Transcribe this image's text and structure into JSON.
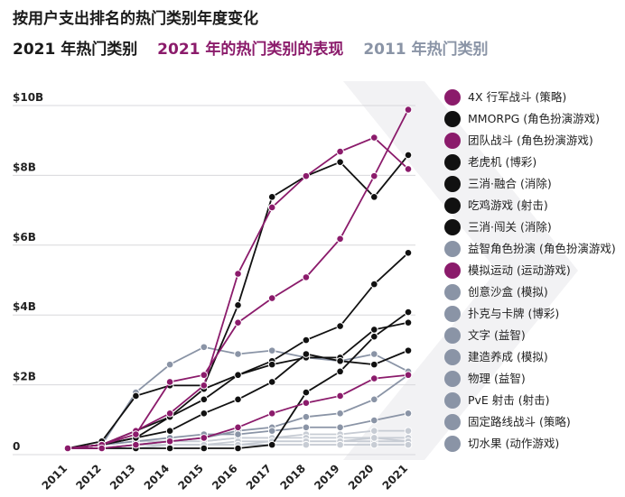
{
  "title": "按用户支出排名的热门类别年度变化",
  "subtitles": [
    {
      "text": "2021 年热门类别",
      "color": "#1a1a1a"
    },
    {
      "text": "2021 年的热门类别的表现",
      "color": "#8b1b6b"
    },
    {
      "text": "2011 年热门类别",
      "color": "#8a94a6"
    }
  ],
  "colors": {
    "purple": "#8b1b6b",
    "black": "#111111",
    "gray": "#8a94a6",
    "lightgray": "#c7ccd4"
  },
  "chart_data": {
    "type": "line",
    "title": "按用户支出排名的热门类别年度变化",
    "x": [
      "2011",
      "2012",
      "2013",
      "2014",
      "2015",
      "2016",
      "2017",
      "2018",
      "2019",
      "2020",
      "2021"
    ],
    "ylim": [
      0,
      10
    ],
    "yticks": [
      {
        "value": 0,
        "label": "0"
      },
      {
        "value": 2,
        "label": "$2B"
      },
      {
        "value": 4,
        "label": "$4B"
      },
      {
        "value": 6,
        "label": "$6B"
      },
      {
        "value": 8,
        "label": "$8B"
      },
      {
        "value": 10,
        "label": "$10B"
      }
    ],
    "grid": true,
    "legend_position": "right",
    "series": [
      {
        "name": "4X 行军战斗 (策略)",
        "color": "purple",
        "values": [
          0,
          0.1,
          0.5,
          1.0,
          1.8,
          5.0,
          6.9,
          7.8,
          8.5,
          8.9,
          8.0
        ]
      },
      {
        "name": "MMORPG (角色扮演游戏)",
        "color": "black",
        "values": [
          0,
          0.2,
          1.5,
          1.8,
          1.8,
          4.1,
          7.2,
          7.8,
          8.2,
          7.2,
          8.4
        ]
      },
      {
        "name": "团队战斗 (角色扮演游戏)",
        "color": "purple",
        "values": [
          0,
          0.1,
          0.4,
          1.9,
          2.1,
          3.6,
          4.3,
          4.9,
          6.0,
          7.8,
          9.7
        ]
      },
      {
        "name": "老虎机 (博彩)",
        "color": "black",
        "values": [
          0,
          0.1,
          0.5,
          0.9,
          1.4,
          2.1,
          2.5,
          3.1,
          3.5,
          4.7,
          5.6
        ]
      },
      {
        "name": "三消·融合 (消除)",
        "color": "black",
        "values": [
          0,
          0.1,
          0.3,
          0.9,
          1.7,
          2.1,
          2.4,
          2.6,
          2.6,
          3.4,
          3.6
        ]
      },
      {
        "name": "吃鸡游戏 (射击)",
        "color": "black",
        "values": [
          0,
          0,
          0,
          0,
          0,
          0,
          0.1,
          1.6,
          2.2,
          3.2,
          3.9
        ]
      },
      {
        "name": "三消·闯关 (消除)",
        "color": "black",
        "values": [
          0,
          0.1,
          0.3,
          0.5,
          1.0,
          1.4,
          1.9,
          2.7,
          2.5,
          2.4,
          2.8
        ]
      },
      {
        "name": "益智角色扮演 (角色扮演游戏)",
        "color": "gray",
        "values": [
          0,
          0.1,
          1.6,
          2.4,
          2.9,
          2.7,
          2.8,
          2.6,
          2.5,
          2.7,
          2.2
        ]
      },
      {
        "name": "模拟运动 (运动游戏)",
        "color": "purple",
        "values": [
          0,
          0,
          0.1,
          0.2,
          0.3,
          0.6,
          1.0,
          1.3,
          1.5,
          2.0,
          2.1
        ]
      },
      {
        "name": "创意沙盒 (模拟)",
        "color": "gray",
        "values": [
          0,
          0,
          0.1,
          0.2,
          0.3,
          0.5,
          0.6,
          0.9,
          1.0,
          1.4,
          2.1
        ]
      },
      {
        "name": "扑克与卡牌 (博彩)",
        "color": "gray",
        "values": [
          0,
          0.1,
          0.2,
          0.3,
          0.4,
          0.4,
          0.5,
          0.6,
          0.6,
          0.8,
          1.0
        ]
      },
      {
        "name": "文字 (益智)",
        "color": "lightgray",
        "values": [
          0,
          0,
          0.1,
          0.2,
          0.2,
          0.3,
          0.3,
          0.4,
          0.4,
          0.5,
          0.5
        ]
      },
      {
        "name": "建造养成 (模拟)",
        "color": "lightgray",
        "values": [
          0,
          0.1,
          0.2,
          0.2,
          0.2,
          0.3,
          0.3,
          0.3,
          0.3,
          0.3,
          0.3
        ]
      },
      {
        "name": "物理 (益智)",
        "color": "lightgray",
        "values": [
          0,
          0,
          0.1,
          0.1,
          0.1,
          0.2,
          0.2,
          0.2,
          0.2,
          0.2,
          0.2
        ]
      },
      {
        "name": "PvE 射击 (射击)",
        "color": "lightgray",
        "values": [
          0,
          0,
          0,
          0.1,
          0.1,
          0.1,
          0.2,
          0.2,
          0.2,
          0.3,
          0.2
        ]
      },
      {
        "name": "固定路线战斗 (策略)",
        "color": "lightgray",
        "values": [
          0,
          0,
          0.1,
          0.1,
          0.1,
          0.1,
          0.1,
          0.1,
          0.1,
          0.1,
          0.1
        ]
      },
      {
        "name": "切水果 (动作游戏)",
        "color": "lightgray",
        "values": [
          0,
          0,
          0,
          0.1,
          0.1,
          0.1,
          0.1,
          0.1,
          0.1,
          0.1,
          0.1
        ]
      }
    ]
  },
  "legend": [
    {
      "label": "4X 行军战斗 (策略)",
      "color": "purple"
    },
    {
      "label": "MMORPG (角色扮演游戏)",
      "color": "black"
    },
    {
      "label": "团队战斗 (角色扮演游戏)",
      "color": "purple"
    },
    {
      "label": "老虎机 (博彩)",
      "color": "black"
    },
    {
      "label": "三消·融合 (消除)",
      "color": "black"
    },
    {
      "label": "吃鸡游戏 (射击)",
      "color": "black"
    },
    {
      "label": "三消·闯关 (消除)",
      "color": "black"
    },
    {
      "label": "益智角色扮演 (角色扮演游戏)",
      "color": "gray"
    },
    {
      "label": "模拟运动 (运动游戏)",
      "color": "purple"
    },
    {
      "label": "创意沙盒 (模拟)",
      "color": "gray"
    },
    {
      "label": "扑克与卡牌 (博彩)",
      "color": "gray"
    },
    {
      "label": "文字 (益智)",
      "color": "gray"
    },
    {
      "label": "建造养成 (模拟)",
      "color": "gray"
    },
    {
      "label": "物理 (益智)",
      "color": "gray"
    },
    {
      "label": "PvE 射击 (射击)",
      "color": "gray"
    },
    {
      "label": "固定路线战斗 (策略)",
      "color": "gray"
    },
    {
      "label": "切水果 (动作游戏)",
      "color": "gray"
    }
  ]
}
